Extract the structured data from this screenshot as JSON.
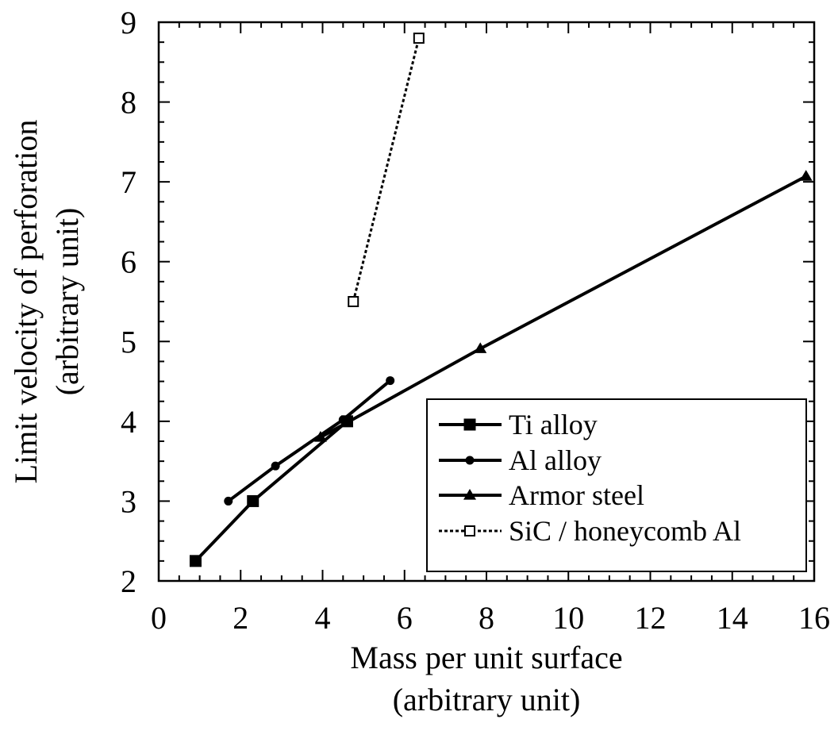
{
  "chart_data": {
    "type": "line",
    "xlabel_line1": "Mass per unit surface",
    "xlabel_line2": "(arbitrary unit)",
    "ylabel_line1": "Limit velocity of perforation",
    "ylabel_line2": "(arbitrary unit)",
    "xlim": [
      0,
      16
    ],
    "ylim": [
      2,
      9
    ],
    "x_ticks": [
      0,
      2,
      4,
      6,
      8,
      10,
      12,
      14,
      16
    ],
    "y_ticks": [
      2,
      3,
      4,
      5,
      6,
      7,
      8,
      9
    ],
    "x_tick_labels": [
      "0",
      "2",
      "4",
      "6",
      "8",
      "10",
      "12",
      "14",
      "16"
    ],
    "y_tick_labels": [
      "2",
      "3",
      "4",
      "5",
      "6",
      "7",
      "8",
      "9"
    ],
    "grid": false,
    "legend_position": "lower-right",
    "series": [
      {
        "name": "Ti alloy",
        "marker": "filled-square",
        "line_style": "solid",
        "color": "#000000",
        "points": [
          [
            0.9,
            2.25
          ],
          [
            2.3,
            3.0
          ],
          [
            4.6,
            4.0
          ]
        ]
      },
      {
        "name": "Al alloy",
        "marker": "filled-circle",
        "line_style": "solid",
        "color": "#000000",
        "points": [
          [
            1.7,
            3.0
          ],
          [
            2.85,
            3.44
          ],
          [
            4.5,
            4.02
          ],
          [
            5.65,
            4.51
          ]
        ]
      },
      {
        "name": "Armor steel",
        "marker": "filled-triangle",
        "line_style": "solid",
        "color": "#000000",
        "points": [
          [
            3.95,
            3.8
          ],
          [
            7.85,
            4.91
          ],
          [
            15.8,
            7.07
          ]
        ]
      },
      {
        "name": "SiC / honeycomb Al",
        "marker": "open-square",
        "line_style": "dotted",
        "color": "#000000",
        "points": [
          [
            4.75,
            5.5
          ],
          [
            6.35,
            8.8
          ]
        ]
      }
    ]
  }
}
